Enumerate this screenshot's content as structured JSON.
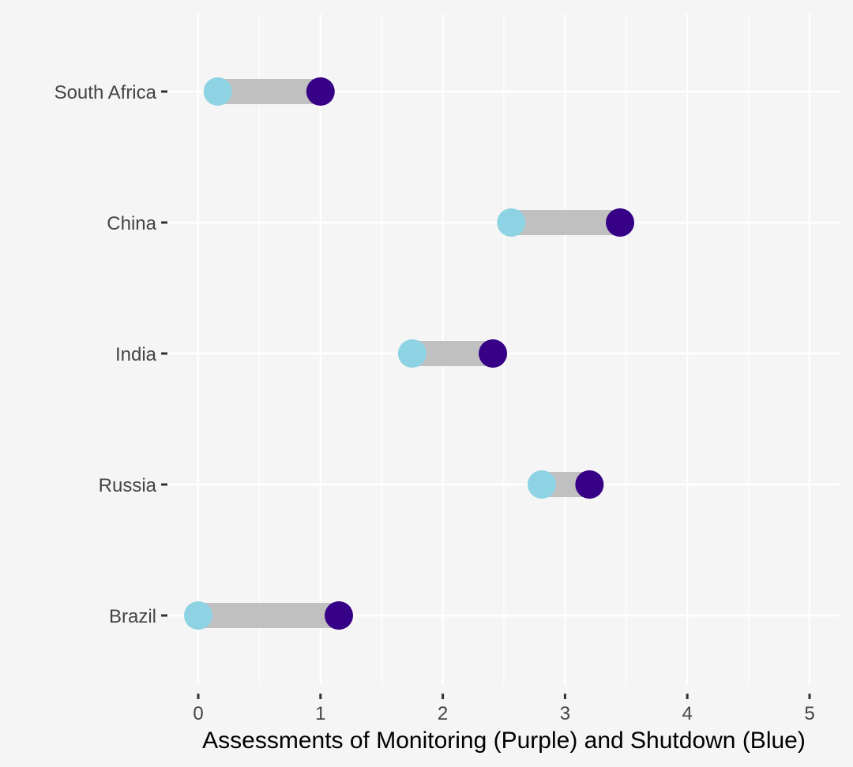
{
  "chart_data": {
    "type": "dumbbell",
    "xlabel": "Assessments of Monitoring (Purple) and Shutdown (Blue)",
    "ylabel": "",
    "xlim": [
      -0.1,
      5.25
    ],
    "x_ticks": [
      "0",
      "1",
      "2",
      "3",
      "4",
      "5"
    ],
    "grid": true,
    "legend": "none",
    "categories": [
      "South Africa",
      "China",
      "India",
      "Russia",
      "Brazil"
    ],
    "series": [
      {
        "name": "Shutdown",
        "color": "#8ed3e3",
        "values": [
          0.16,
          2.56,
          1.75,
          2.81,
          0.0
        ]
      },
      {
        "name": "Monitoring",
        "color": "#360087",
        "values": [
          1.0,
          3.45,
          2.41,
          3.2,
          1.15
        ]
      }
    ],
    "connector_color": "#c0c0c0",
    "background_color": "#f5f5f5",
    "grid_color": "#ffffff"
  }
}
